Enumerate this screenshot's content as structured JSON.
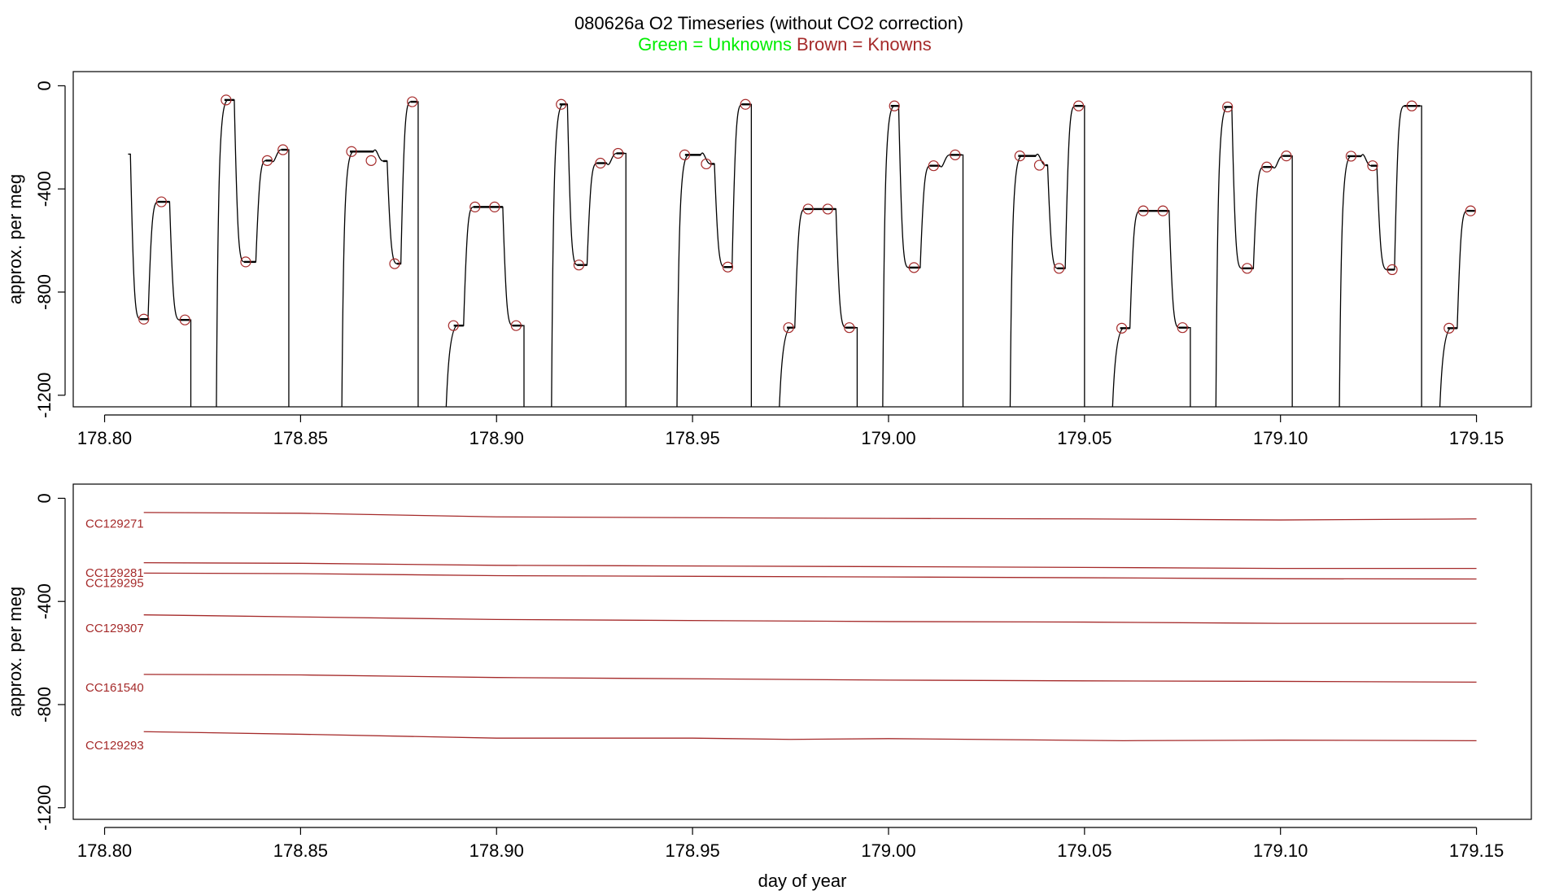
{
  "title": {
    "main": "080626a   O2 Timeseries (without CO2 correction)",
    "legend_unknowns": "Green = Unknowns",
    "legend_knowns": "Brown = Knowns"
  },
  "colors": {
    "knowns": "#a52a2a",
    "unknowns": "#00ee00",
    "trace": "#000000",
    "axis": "#000000"
  },
  "chart_data": [
    {
      "type": "line",
      "panel": "top",
      "ylabel": "approx. per meg",
      "xlabel": "",
      "xlim": [
        178.792,
        179.164
      ],
      "ylim": [
        -1245,
        55
      ],
      "xticks": [
        178.8,
        178.85,
        178.9,
        178.95,
        179.0,
        179.05,
        179.1,
        179.15
      ],
      "xtick_labels": [
        "178.80",
        "178.85",
        "178.90",
        "178.95",
        "179.00",
        "179.05",
        "179.10",
        "179.15"
      ],
      "yticks": [
        0,
        -400,
        -800,
        -1200
      ],
      "ytick_labels": [
        "0",
        "-400",
        "-800",
        "-1200"
      ],
      "trace_breaks": [
        178.822,
        178.847,
        178.88,
        178.907,
        178.933,
        178.965,
        178.992,
        179.019,
        179.05,
        179.077,
        179.103,
        179.136
      ],
      "trace_segments": [
        {
          "start": 178.806,
          "level": -265,
          "end": 178.807
        },
        {
          "start": 178.807,
          "level": -905,
          "end": 178.8115
        },
        {
          "start": 178.8115,
          "level": -450,
          "end": 178.817
        },
        {
          "start": 178.817,
          "level": -908,
          "end": 178.822
        },
        {
          "start": 178.8285,
          "level": -55,
          "end": 178.8335
        },
        {
          "start": 178.8335,
          "level": -683,
          "end": 178.839
        },
        {
          "start": 178.839,
          "level": -290,
          "end": 178.843
        },
        {
          "start": 178.843,
          "level": -248,
          "end": 178.847
        },
        {
          "start": 178.8605,
          "level": -255,
          "end": 178.869
        },
        {
          "start": 178.869,
          "level": -292,
          "end": 178.8725
        },
        {
          "start": 178.8725,
          "level": -690,
          "end": 178.876
        },
        {
          "start": 178.876,
          "level": -62,
          "end": 178.88
        },
        {
          "start": 178.887,
          "level": -930,
          "end": 178.892
        },
        {
          "start": 178.892,
          "level": -470,
          "end": 178.902
        },
        {
          "start": 178.902,
          "level": -930,
          "end": 178.907
        },
        {
          "start": 178.914,
          "level": -72,
          "end": 178.9185
        },
        {
          "start": 178.9185,
          "level": -695,
          "end": 178.9235
        },
        {
          "start": 178.9235,
          "level": -300,
          "end": 178.9285
        },
        {
          "start": 178.9285,
          "level": -262,
          "end": 178.933
        },
        {
          "start": 178.946,
          "level": -268,
          "end": 178.9525
        },
        {
          "start": 178.9525,
          "level": -303,
          "end": 178.956
        },
        {
          "start": 178.956,
          "level": -703,
          "end": 178.9605
        },
        {
          "start": 178.9605,
          "level": -72,
          "end": 178.965
        },
        {
          "start": 178.972,
          "level": -938,
          "end": 178.9765
        },
        {
          "start": 178.9765,
          "level": -478,
          "end": 178.987
        },
        {
          "start": 178.987,
          "level": -938,
          "end": 178.992
        },
        {
          "start": 178.9985,
          "level": -78,
          "end": 179.003
        },
        {
          "start": 179.003,
          "level": -705,
          "end": 179.0085
        },
        {
          "start": 179.0085,
          "level": -310,
          "end": 179.0135
        },
        {
          "start": 179.0135,
          "level": -268,
          "end": 179.019
        },
        {
          "start": 179.031,
          "level": -272,
          "end": 179.038
        },
        {
          "start": 179.038,
          "level": -308,
          "end": 179.041
        },
        {
          "start": 179.041,
          "level": -708,
          "end": 179.0455
        },
        {
          "start": 179.0455,
          "level": -78,
          "end": 179.05
        },
        {
          "start": 179.057,
          "level": -940,
          "end": 179.062
        },
        {
          "start": 179.062,
          "level": -485,
          "end": 179.072
        },
        {
          "start": 179.072,
          "level": -938,
          "end": 179.077
        },
        {
          "start": 179.0835,
          "level": -82,
          "end": 179.088
        },
        {
          "start": 179.088,
          "level": -708,
          "end": 179.0935
        },
        {
          "start": 179.0935,
          "level": -315,
          "end": 179.0985
        },
        {
          "start": 179.0985,
          "level": -272,
          "end": 179.103
        },
        {
          "start": 179.115,
          "level": -273,
          "end": 179.121
        },
        {
          "start": 179.121,
          "level": -310,
          "end": 179.125
        },
        {
          "start": 179.125,
          "level": -713,
          "end": 179.1295
        },
        {
          "start": 179.1295,
          "level": -78,
          "end": 179.136
        },
        {
          "start": 179.1405,
          "level": -940,
          "end": 179.1455
        },
        {
          "start": 179.1455,
          "level": -485,
          "end": 179.15
        }
      ],
      "known_points": [
        {
          "x": 178.81,
          "y": -905
        },
        {
          "x": 178.8145,
          "y": -450
        },
        {
          "x": 178.8205,
          "y": -908
        },
        {
          "x": 178.831,
          "y": -55
        },
        {
          "x": 178.836,
          "y": -683
        },
        {
          "x": 178.8415,
          "y": -290
        },
        {
          "x": 178.8455,
          "y": -248
        },
        {
          "x": 178.863,
          "y": -255
        },
        {
          "x": 178.868,
          "y": -290
        },
        {
          "x": 178.874,
          "y": -690
        },
        {
          "x": 178.8785,
          "y": -62
        },
        {
          "x": 178.889,
          "y": -930
        },
        {
          "x": 178.8945,
          "y": -470
        },
        {
          "x": 178.8995,
          "y": -470
        },
        {
          "x": 178.905,
          "y": -930
        },
        {
          "x": 178.9165,
          "y": -72
        },
        {
          "x": 178.921,
          "y": -695
        },
        {
          "x": 178.9265,
          "y": -300
        },
        {
          "x": 178.931,
          "y": -262
        },
        {
          "x": 178.948,
          "y": -268
        },
        {
          "x": 178.9535,
          "y": -303
        },
        {
          "x": 178.959,
          "y": -703
        },
        {
          "x": 178.9635,
          "y": -72
        },
        {
          "x": 178.9745,
          "y": -938
        },
        {
          "x": 178.9795,
          "y": -478
        },
        {
          "x": 178.9845,
          "y": -478
        },
        {
          "x": 178.99,
          "y": -938
        },
        {
          "x": 179.0015,
          "y": -78
        },
        {
          "x": 179.0065,
          "y": -705
        },
        {
          "x": 179.0115,
          "y": -310
        },
        {
          "x": 179.017,
          "y": -268
        },
        {
          "x": 179.0335,
          "y": -272
        },
        {
          "x": 179.0385,
          "y": -308
        },
        {
          "x": 179.0435,
          "y": -708
        },
        {
          "x": 179.0485,
          "y": -78
        },
        {
          "x": 179.0595,
          "y": -940
        },
        {
          "x": 179.065,
          "y": -485
        },
        {
          "x": 179.07,
          "y": -485
        },
        {
          "x": 179.075,
          "y": -938
        },
        {
          "x": 179.0865,
          "y": -82
        },
        {
          "x": 179.0915,
          "y": -708
        },
        {
          "x": 179.0965,
          "y": -315
        },
        {
          "x": 179.1015,
          "y": -272
        },
        {
          "x": 179.118,
          "y": -273
        },
        {
          "x": 179.1235,
          "y": -310
        },
        {
          "x": 179.1285,
          "y": -713
        },
        {
          "x": 179.1335,
          "y": -78
        },
        {
          "x": 179.143,
          "y": -940
        },
        {
          "x": 179.1485,
          "y": -485
        }
      ]
    },
    {
      "type": "line",
      "panel": "bottom",
      "ylabel": "approx. per meg",
      "xlabel": "day of year",
      "xlim": [
        178.792,
        179.164
      ],
      "ylim": [
        -1245,
        55
      ],
      "xticks": [
        178.8,
        178.85,
        178.9,
        178.95,
        179.0,
        179.05,
        179.1,
        179.15
      ],
      "xtick_labels": [
        "178.80",
        "178.85",
        "178.90",
        "178.95",
        "179.00",
        "179.05",
        "179.10",
        "179.15"
      ],
      "yticks": [
        0,
        -400,
        -800,
        -1200
      ],
      "ytick_labels": [
        "0",
        "-400",
        "-800",
        "-1200"
      ],
      "series": [
        {
          "name": "CC129271",
          "x": [
            178.81,
            178.85,
            178.9,
            179.0,
            179.05,
            179.1,
            179.15
          ],
          "y": [
            -55,
            -58,
            -72,
            -78,
            -80,
            -84,
            -80
          ],
          "label_y": -95
        },
        {
          "name": "CC129281",
          "x": [
            178.81,
            178.85,
            178.9,
            179.0,
            179.05,
            179.1,
            179.15
          ],
          "y": [
            -250,
            -252,
            -260,
            -265,
            -268,
            -272,
            -272
          ],
          "label_y": -285
        },
        {
          "name": "CC129295",
          "x": [
            178.81,
            178.85,
            178.9,
            179.0,
            179.05,
            179.1,
            179.15
          ],
          "y": [
            -290,
            -292,
            -300,
            -305,
            -308,
            -312,
            -313
          ],
          "label_y": -325
        },
        {
          "name": "CC129307",
          "x": [
            178.81,
            178.85,
            178.9,
            179.0,
            179.05,
            179.1,
            179.15
          ],
          "y": [
            -452,
            -460,
            -470,
            -478,
            -480,
            -485,
            -485
          ],
          "label_y": -500
        },
        {
          "name": "CC161540",
          "x": [
            178.81,
            178.85,
            178.9,
            179.0,
            179.05,
            179.1,
            179.15
          ],
          "y": [
            -683,
            -685,
            -695,
            -705,
            -708,
            -710,
            -713
          ],
          "label_y": -730
        },
        {
          "name": "CC129293",
          "x": [
            178.81,
            178.85,
            178.9,
            178.95,
            178.975,
            179.0,
            179.06,
            179.1,
            179.15
          ],
          "y": [
            -905,
            -915,
            -930,
            -930,
            -935,
            -932,
            -940,
            -938,
            -940
          ],
          "label_y": -955
        }
      ]
    }
  ]
}
